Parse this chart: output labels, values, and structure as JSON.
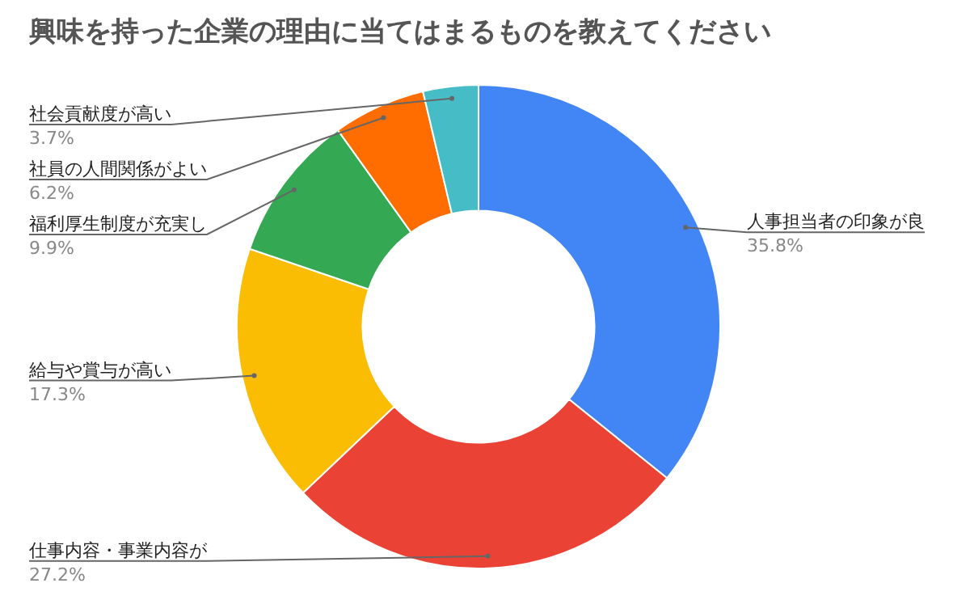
{
  "chart_data": {
    "type": "donut",
    "title": "興味を持った企業の理由に当てはまるものを教えてください",
    "categories": [
      "人事担当者の印象が良",
      "仕事内容・事業内容が",
      "給与や賞与が高い",
      "福利厚生制度が充実し",
      "社員の人間関係がよい",
      "社会貢献度が高い"
    ],
    "values": [
      35.8,
      27.2,
      17.3,
      9.9,
      6.2,
      3.7
    ],
    "colors": [
      "#4285f4",
      "#ea4335",
      "#fbbc04",
      "#34a853",
      "#ff6d01",
      "#46bdc6"
    ],
    "value_labels": [
      "35.8%",
      "27.2%",
      "17.3%",
      "9.9%",
      "6.2%",
      "3.7%"
    ],
    "legend": false
  }
}
